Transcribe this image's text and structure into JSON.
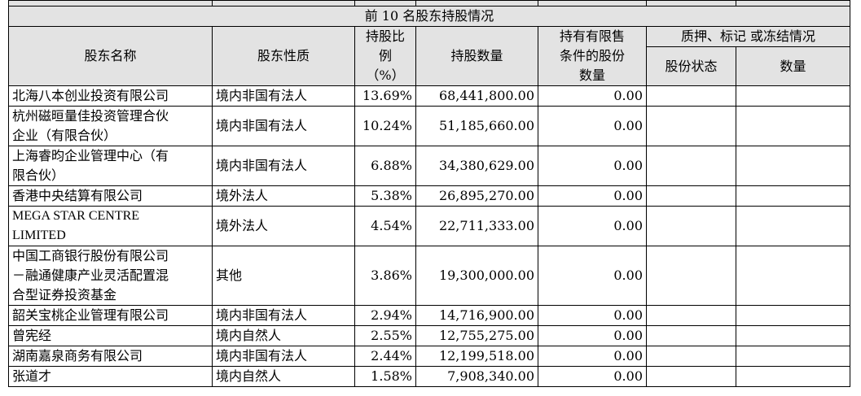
{
  "table": {
    "caption": "前 10 名股东持股情况",
    "headers": {
      "name": "股东名称",
      "nature": "股东性质",
      "pct": "持股比例（%）",
      "pct_lines": [
        "持股比",
        "例",
        "（%）"
      ],
      "shares": "持股数量",
      "restricted": "持有有限售条件的股份数量",
      "restricted_lines": [
        "持有有限售",
        "条件的股份",
        "数量"
      ],
      "pledge_group": "质押、标记 或冻结情况",
      "pledge_status": "股份状态",
      "pledge_qty": "数量"
    },
    "rows": [
      {
        "name_lines": [
          "北海八本创业投资有限公司"
        ],
        "nature": "境内非国有法人",
        "pct": "13.69%",
        "shares": "68,441,800.00",
        "restricted": "0.00",
        "status": "",
        "qty": ""
      },
      {
        "name_lines": [
          "杭州磁晅量佳投资管理合伙",
          "企业（有限合伙）"
        ],
        "nature": "境内非国有法人",
        "pct": "10.24%",
        "shares": "51,185,660.00",
        "restricted": "0.00",
        "status": "",
        "qty": ""
      },
      {
        "name_lines": [
          "上海睿昀企业管理中心（有",
          "限合伙）"
        ],
        "nature": "境内非国有法人",
        "pct": "6.88%",
        "shares": "34,380,629.00",
        "restricted": "0.00",
        "status": "",
        "qty": ""
      },
      {
        "name_lines": [
          "香港中央结算有限公司"
        ],
        "nature": "境外法人",
        "pct": "5.38%",
        "shares": "26,895,270.00",
        "restricted": "0.00",
        "status": "",
        "qty": ""
      },
      {
        "name_lines": [
          "MEGA STAR CENTRE",
          "LIMITED"
        ],
        "nature": "境外法人",
        "pct": "4.54%",
        "shares": "22,711,333.00",
        "restricted": "0.00",
        "status": "",
        "qty": ""
      },
      {
        "name_lines": [
          "中国工商银行股份有限公司",
          "－融通健康产业灵活配置混",
          "合型证券投资基金"
        ],
        "nature": "其他",
        "pct": "3.86%",
        "shares": "19,300,000.00",
        "restricted": "0.00",
        "status": "",
        "qty": ""
      },
      {
        "name_lines": [
          "韶关宝桃企业管理有限公司"
        ],
        "nature": "境内非国有法人",
        "pct": "2.94%",
        "shares": "14,716,900.00",
        "restricted": "0.00",
        "status": "",
        "qty": ""
      },
      {
        "name_lines": [
          "曾宪经"
        ],
        "nature": "境内自然人",
        "pct": "2.55%",
        "shares": "12,755,275.00",
        "restricted": "0.00",
        "status": "",
        "qty": ""
      },
      {
        "name_lines": [
          "湖南嘉泉商务有限公司"
        ],
        "nature": "境内非国有法人",
        "pct": "2.44%",
        "shares": "12,199,518.00",
        "restricted": "0.00",
        "status": "",
        "qty": ""
      },
      {
        "name_lines": [
          "张道才"
        ],
        "nature": "境内自然人",
        "pct": "1.58%",
        "shares": "7,908,340.00",
        "restricted": "0.00",
        "status": "",
        "qty": ""
      }
    ]
  }
}
